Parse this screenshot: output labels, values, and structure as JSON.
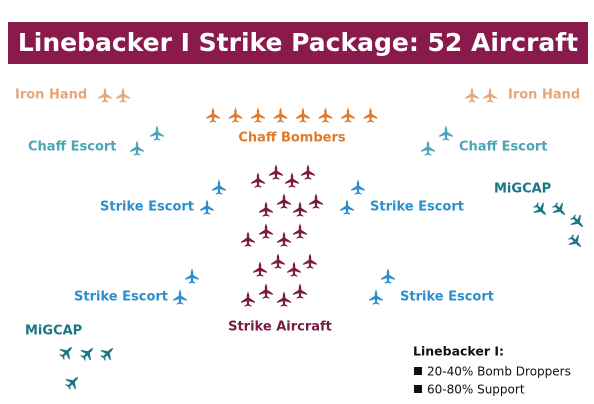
{
  "title": "Linebacker I Strike Package:  52 Aircraft",
  "groups": {
    "iron_hand_left": "Iron Hand",
    "iron_hand_right": "Iron Hand",
    "chaff_bombers": "Chaff Bombers",
    "chaff_escort_left": "Chaff Escort",
    "chaff_escort_right": "Chaff Escort",
    "strike_escort_upper_left": "Strike Escort",
    "strike_escort_upper_right": "Strike Escort",
    "strike_escort_lower_left": "Strike Escort",
    "strike_escort_lower_right": "Strike Escort",
    "migcap_right": "MiGCAP",
    "migcap_left": "MiGCAP",
    "strike_aircraft": "Strike Aircraft"
  },
  "legend": {
    "heading": "Linebacker I:",
    "items": [
      "20-40% Bomb Droppers",
      "60-80% Support"
    ]
  }
}
